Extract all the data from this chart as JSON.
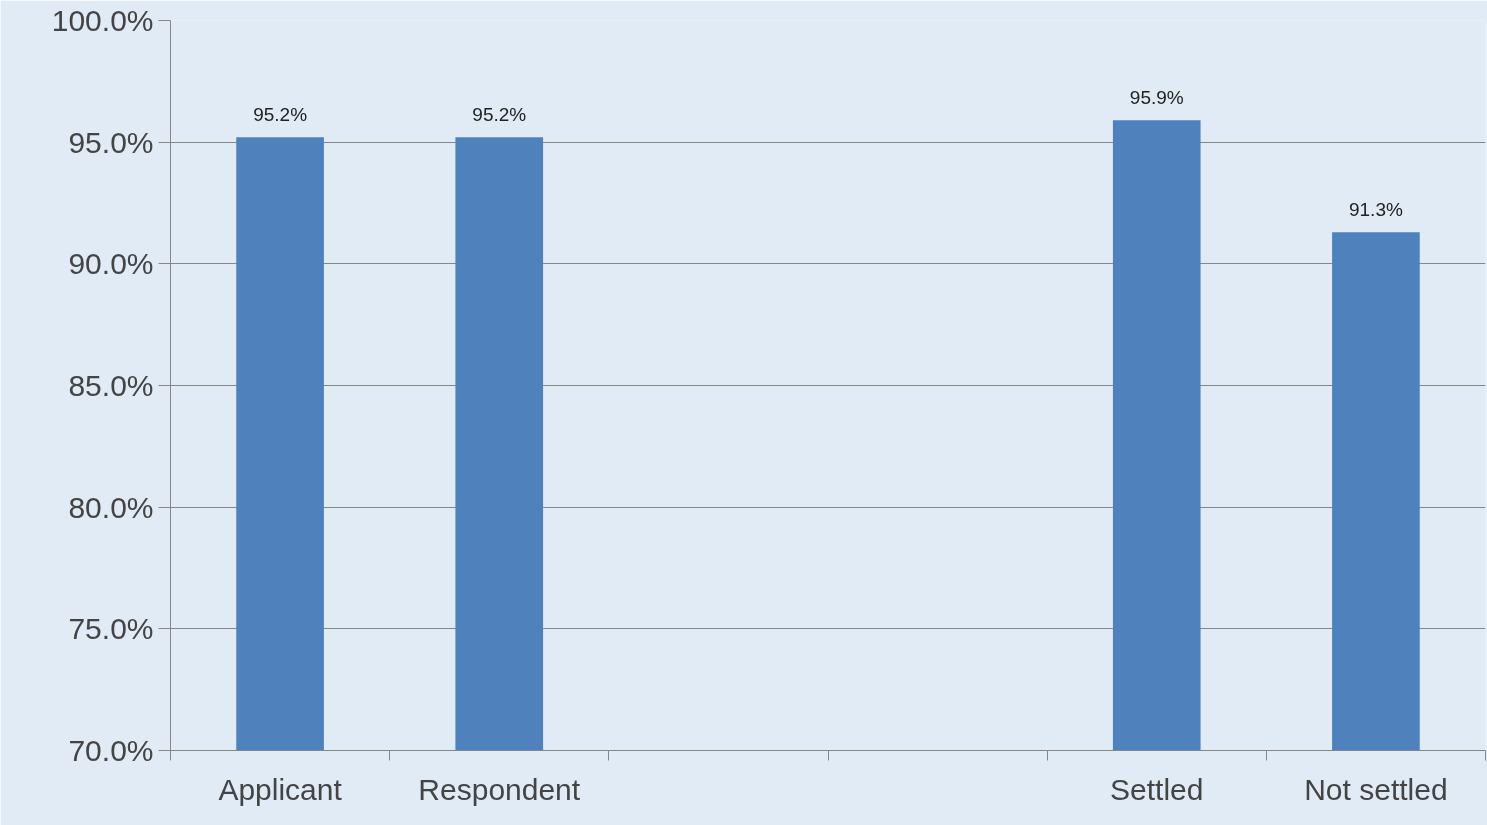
{
  "chart_data": {
    "type": "bar",
    "categories": [
      "Applicant",
      "Respondent",
      null,
      null,
      "Settled",
      "Not settled"
    ],
    "values": [
      95.2,
      95.2,
      null,
      null,
      95.9,
      91.3
    ],
    "color": "#4f81bd",
    "data_labels": true,
    "value_labels": [
      "95.2%",
      "95.2%",
      null,
      null,
      "95.9%",
      "91.3%"
    ],
    "ylim": [
      70,
      100
    ],
    "yticks": [
      {
        "value": 70,
        "label": "70.0%"
      },
      {
        "value": 75,
        "label": "75.0%"
      },
      {
        "value": 80,
        "label": "80.0%"
      },
      {
        "value": 85,
        "label": "85.0%"
      },
      {
        "value": 90,
        "label": "90.0%"
      },
      {
        "value": 95,
        "label": "95.0%"
      },
      {
        "value": 100,
        "label": "100.0%"
      }
    ],
    "grid": "y"
  }
}
